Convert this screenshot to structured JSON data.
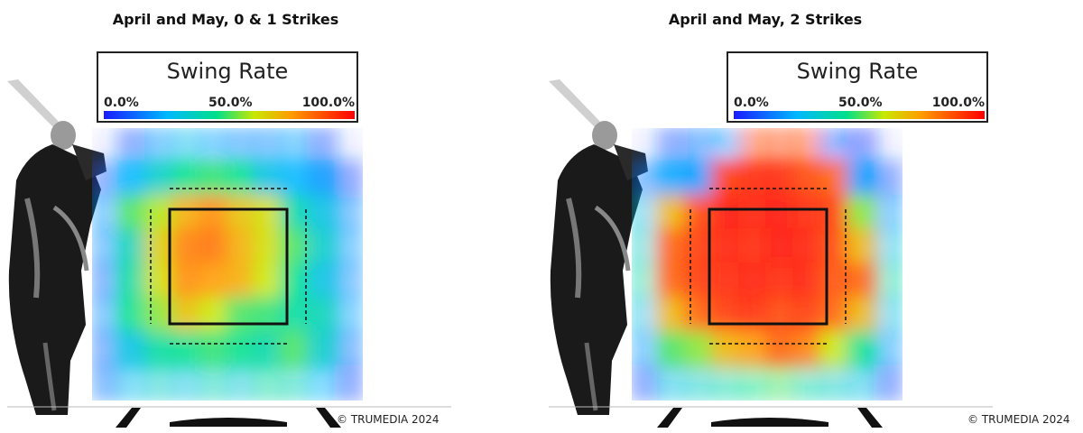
{
  "chart_data": [
    {
      "type": "heatmap",
      "title": "April and May, 0 & 1 Strikes",
      "legend": {
        "title": "Swing Rate",
        "min_label": "0.0%",
        "mid_label": "50.0%",
        "max_label": "100.0%",
        "range": [
          0,
          100
        ]
      },
      "values": [
        [
          0,
          10,
          20,
          28,
          22,
          18,
          18,
          22,
          10,
          0
        ],
        [
          10,
          25,
          35,
          45,
          48,
          45,
          30,
          25,
          20,
          8
        ],
        [
          20,
          50,
          58,
          72,
          78,
          68,
          62,
          40,
          30,
          18
        ],
        [
          18,
          38,
          65,
          80,
          82,
          72,
          62,
          50,
          35,
          20
        ],
        [
          12,
          42,
          62,
          78,
          75,
          72,
          60,
          45,
          30,
          18
        ],
        [
          18,
          45,
          55,
          68,
          60,
          50,
          48,
          42,
          38,
          22
        ],
        [
          12,
          30,
          42,
          45,
          48,
          45,
          40,
          50,
          35,
          15
        ],
        [
          15,
          28,
          35,
          30,
          38,
          32,
          42,
          38,
          25,
          10
        ]
      ],
      "copyright": "© TRUMEDIA 2024"
    },
    {
      "type": "heatmap",
      "title": "April and May, 2 Strikes",
      "legend": {
        "title": "Swing Rate",
        "min_label": "0.0%",
        "mid_label": "50.0%",
        "max_label": "100.0%",
        "range": [
          0,
          100
        ]
      },
      "values": [
        [
          0,
          10,
          15,
          20,
          88,
          90,
          88,
          12,
          5,
          0
        ],
        [
          15,
          22,
          20,
          92,
          95,
          95,
          90,
          85,
          20,
          10
        ],
        [
          30,
          70,
          90,
          98,
          96,
          98,
          95,
          92,
          55,
          20
        ],
        [
          35,
          85,
          92,
          96,
          95,
          98,
          96,
          90,
          70,
          30
        ],
        [
          40,
          85,
          92,
          95,
          96,
          95,
          96,
          88,
          85,
          40
        ],
        [
          30,
          70,
          85,
          92,
          94,
          90,
          92,
          85,
          70,
          30
        ],
        [
          20,
          50,
          55,
          70,
          75,
          85,
          80,
          60,
          45,
          20
        ],
        [
          10,
          30,
          35,
          40,
          45,
          50,
          40,
          35,
          30,
          10
        ]
      ],
      "copyright": "© TRUMEDIA 2024"
    }
  ]
}
